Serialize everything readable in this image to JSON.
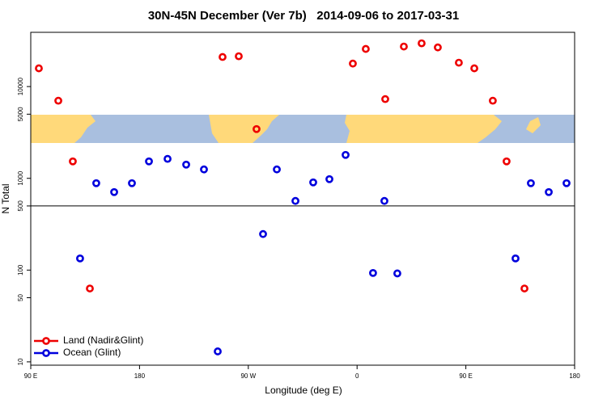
{
  "chart_data": {
    "type": "scatter",
    "title": "30N-45N December (Ver 7b)   2014-09-06 to 2017-03-31",
    "xlabel": "Longitude (deg E)",
    "ylabel": "N Total",
    "xlim": [
      90,
      540
    ],
    "xticks": [
      {
        "value": 90,
        "label": "90 E"
      },
      {
        "value": 180,
        "label": "180"
      },
      {
        "value": 270,
        "label": "90 W"
      },
      {
        "value": 360,
        "label": "0"
      },
      {
        "value": 450,
        "label": "90 E"
      },
      {
        "value": 540,
        "label": "180"
      }
    ],
    "ylim": [
      9.2,
      39000
    ],
    "yticks": [
      10,
      50,
      100,
      500,
      1000,
      5000,
      10000
    ],
    "log_y": true,
    "hline": 500,
    "legend": "bottom-left",
    "series": [
      {
        "name": "Land (Nadir&Glint)",
        "color": "#ee0000",
        "x": [
          96.7,
          112.8,
          124.8,
          138.9,
          248.7,
          262.1,
          276.8,
          356.5,
          367.2,
          383.3,
          398.7,
          413.4,
          426.8,
          444.2,
          457.0,
          472.3,
          483.7,
          498.5
        ],
        "values": [
          15800,
          7010,
          1530,
          63,
          21000,
          21400,
          3440,
          17800,
          25700,
          7300,
          27300,
          29600,
          26700,
          18200,
          15800,
          7010,
          1530,
          63
        ]
      },
      {
        "name": "Ocean (Glint)",
        "color": "#0000dd",
        "x": [
          130.8,
          144.2,
          159.0,
          173.7,
          187.8,
          203.2,
          218.6,
          233.3,
          244.7,
          282.2,
          293.6,
          309.0,
          323.7,
          337.1,
          350.5,
          373.2,
          382.6,
          393.3,
          491.1,
          503.8,
          518.6,
          533.3
        ],
        "values": [
          134,
          885,
          708,
          885,
          1530,
          1630,
          1410,
          1250,
          13,
          247,
          1250,
          567,
          903,
          979,
          1800,
          93,
          567,
          92,
          134,
          885,
          708,
          885
        ]
      }
    ]
  }
}
